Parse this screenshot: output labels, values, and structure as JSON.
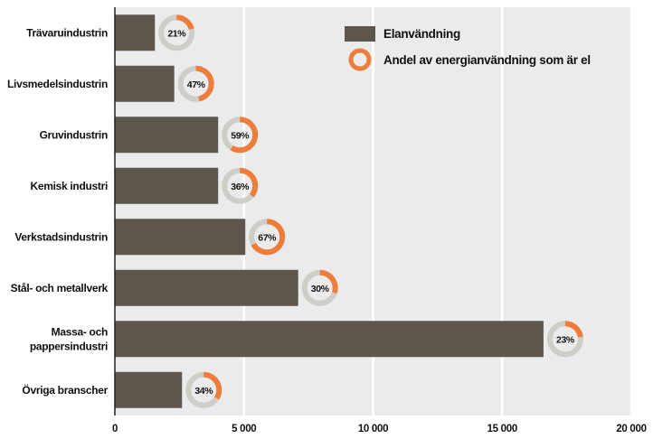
{
  "chart_data": {
    "type": "bar",
    "orientation": "horizontal",
    "categories": [
      [
        "Trävaruindustrin"
      ],
      [
        "Livsmedelsindustrin"
      ],
      [
        "Gruvindustrin"
      ],
      [
        "Kemisk industri"
      ],
      [
        "Verkstadsindustrin"
      ],
      [
        "Stål- och metallverk"
      ],
      [
        "Massa- och",
        "pappersindustri"
      ],
      [
        "Övriga branscher"
      ]
    ],
    "series": [
      {
        "name": "Elanvändning",
        "values": [
          1550,
          2300,
          4000,
          4000,
          5050,
          7100,
          16600,
          2600
        ]
      },
      {
        "name": "Andel av energianvändning som är el",
        "values": [
          21,
          47,
          59,
          36,
          67,
          30,
          23,
          34
        ],
        "unit": "%"
      }
    ],
    "xlim": [
      0,
      20000
    ],
    "xticks": [
      0,
      5000,
      10000,
      15000,
      20000
    ],
    "xtick_labels": [
      "0",
      "5 000",
      "10 000",
      "15 000",
      "20 000"
    ],
    "grid": "vertical",
    "legend": "top-right",
    "colors": {
      "bar": "#5c564d",
      "ring_filled": "#ee7d3b",
      "ring_empty": "#cfcdc8",
      "plot_background": "#ebebeb",
      "gridline": "#ffffff"
    }
  }
}
